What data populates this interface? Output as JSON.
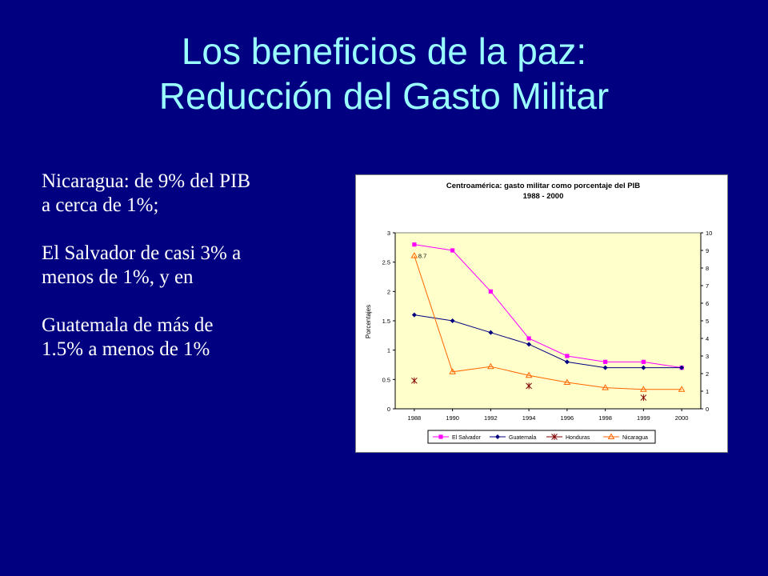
{
  "slide": {
    "title_line1": "Los beneficios de la paz:",
    "title_line2": "Reducción del Gasto Militar",
    "bullets": [
      "Nicaragua: de 9% del PIB",
      "a cerca de 1%;",
      "El Salvador de casi 3% a",
      "menos de 1%, y en",
      "Guatemala de más de",
      "1.5% a menos de 1%"
    ]
  },
  "colors": {
    "background": "#000080",
    "title": "#99ffff",
    "plot_area": "#ffffcc"
  },
  "chart_data": {
    "type": "line",
    "title": "Centroamérica: gasto militar como porcentaje del PIB",
    "subtitle": "1988 - 2000",
    "ylabel": "Porcentajes",
    "xlabel": "",
    "categories": [
      "1988",
      "1990",
      "1992",
      "1994",
      "1996",
      "1998",
      "1999",
      "2000"
    ],
    "ylim": [
      0,
      3
    ],
    "yticks": [
      "0",
      "0.5",
      "1",
      "1.5",
      "2",
      "2.5",
      "3"
    ],
    "y2lim": [
      0,
      10
    ],
    "y2ticks": [
      "0",
      "1",
      "2",
      "3",
      "4",
      "5",
      "6",
      "7",
      "8",
      "9",
      "10"
    ],
    "grid": false,
    "legend_position": "bottom",
    "series": [
      {
        "name": "El Salvador",
        "axis": "left",
        "color": "#ff00ff",
        "marker": "square",
        "values": [
          2.8,
          2.7,
          2.0,
          1.2,
          0.9,
          0.8,
          0.8,
          0.7
        ]
      },
      {
        "name": "Guatemala",
        "axis": "left",
        "color": "#000080",
        "marker": "diamond",
        "values": [
          1.6,
          1.5,
          1.3,
          1.1,
          0.8,
          0.7,
          0.7,
          0.7
        ]
      },
      {
        "name": "Honduras",
        "axis": "left",
        "color": "#800000",
        "marker": "star",
        "line": false,
        "values": [
          0.48,
          null,
          null,
          0.39,
          null,
          null,
          0.19,
          null
        ]
      },
      {
        "name": "Nicaragua",
        "axis": "right",
        "color": "#ff6600",
        "marker": "triangle",
        "values": [
          8.7,
          2.1,
          2.4,
          1.9,
          1.5,
          1.2,
          1.1,
          1.1
        ]
      }
    ],
    "annotations": [
      {
        "text": "8.7",
        "series": "Nicaragua",
        "category": "1988"
      }
    ]
  }
}
